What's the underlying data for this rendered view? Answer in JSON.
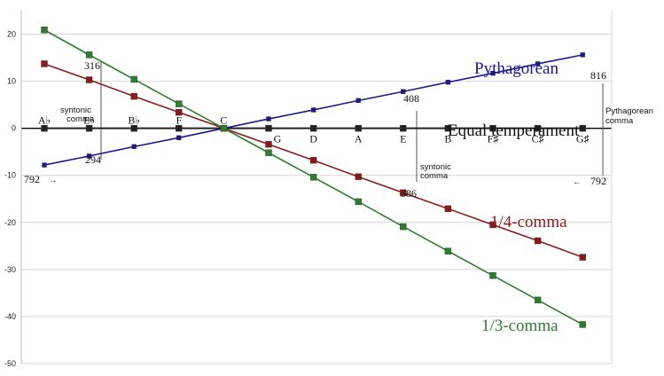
{
  "chart_data": {
    "type": "line",
    "ylim": [
      -50,
      25
    ],
    "yticks": [
      20,
      10,
      0,
      -10,
      -20,
      -30,
      -40,
      -50
    ],
    "grid": true,
    "categories": [
      "A♭",
      "E♭",
      "B♭",
      "F",
      "C",
      "G",
      "D",
      "A",
      "E",
      "B",
      "F♯",
      "C♯",
      "G♯"
    ],
    "series": [
      {
        "name": "Pythagorean",
        "color": "#1a1a8c",
        "values": [
          -7.8,
          -5.9,
          -3.9,
          -2.0,
          0,
          2.0,
          3.9,
          5.9,
          7.8,
          9.8,
          11.7,
          13.7,
          15.6
        ]
      },
      {
        "name": "Equal temperament",
        "color": "#222222",
        "values": [
          0,
          0,
          0,
          0,
          0,
          0,
          0,
          0,
          0,
          0,
          0,
          0,
          0
        ]
      },
      {
        "name": "1/4-comma",
        "color": "#8b1a1a",
        "values": [
          13.7,
          10.3,
          6.8,
          3.4,
          0,
          -3.4,
          -6.8,
          -10.3,
          -13.7,
          -17.1,
          -20.5,
          -23.9,
          -27.4
        ]
      },
      {
        "name": "1/3-comma",
        "color": "#2e7d2e",
        "values": [
          20.9,
          15.6,
          10.4,
          5.2,
          0,
          -5.2,
          -10.4,
          -15.6,
          -20.9,
          -26.1,
          -31.3,
          -36.5,
          -41.7
        ]
      }
    ],
    "annotations": {
      "n316": "316",
      "n294": "294",
      "n408": "408",
      "n386": "386",
      "n816": "816",
      "n792_left": "792",
      "n792_right": "792",
      "syntonic_left_1": "syntonic",
      "syntonic_left_2": "comma",
      "syntonic_right_1": "syntonic",
      "syntonic_right_2": "comma",
      "pyth_comma_1": "Pythagorean",
      "pyth_comma_2": "comma",
      "arrow_left": "→",
      "arrow_right": "←"
    }
  }
}
